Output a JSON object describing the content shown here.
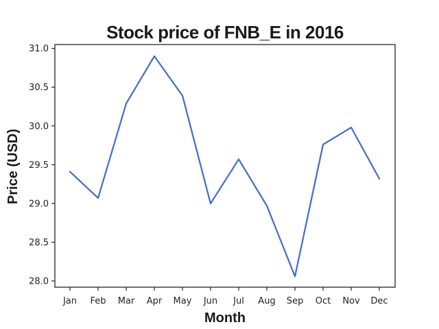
{
  "chart_data": {
    "type": "line",
    "title": "Stock price of FNB_E in 2016",
    "xlabel": "Month",
    "ylabel": "Price (USD)",
    "categories": [
      "Jan",
      "Feb",
      "Mar",
      "Apr",
      "May",
      "Jun",
      "Jul",
      "Aug",
      "Sep",
      "Oct",
      "Nov",
      "Dec"
    ],
    "series": [
      {
        "values": [
          29.41,
          29.07,
          30.29,
          30.9,
          30.39,
          29.0,
          29.57,
          28.97,
          28.06,
          29.76,
          29.98,
          29.32
        ],
        "color": "#4a6fc7"
      }
    ],
    "ylim": [
      27.92,
      31.05
    ],
    "yticks": [
      28.0,
      28.5,
      29.0,
      29.5,
      30.0,
      30.5,
      31.0
    ],
    "ytick_labels": [
      "28.0",
      "28.5",
      "29.0",
      "29.5",
      "30.0",
      "30.5",
      "31.0"
    ],
    "grid": false,
    "legend": "none"
  }
}
